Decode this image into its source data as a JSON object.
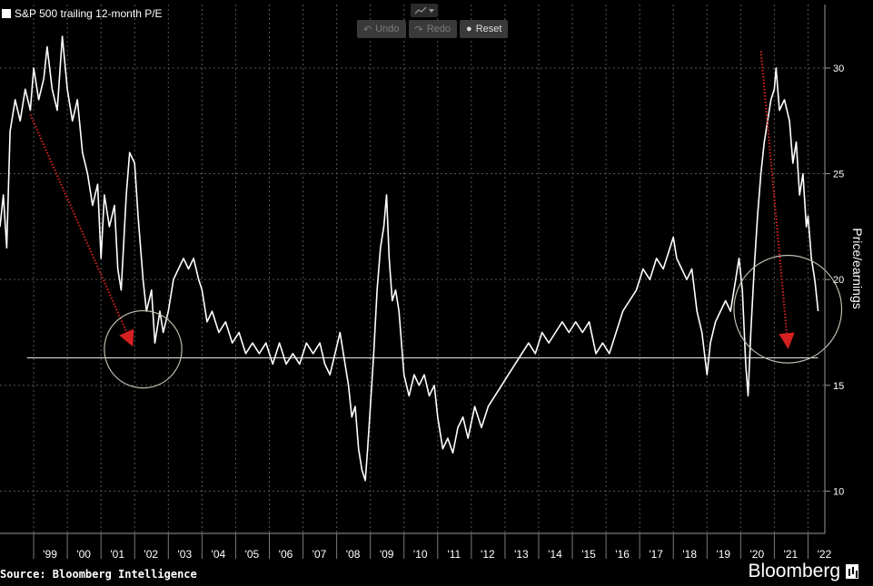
{
  "legend": {
    "label": "S&P 500 trailing 12-month P/E"
  },
  "toolbar": {
    "undo_label": "Undo",
    "redo_label": "Redo",
    "reset_label": "Reset",
    "undo_icon": "undo-icon",
    "redo_icon": "redo-icon",
    "reset_icon": "reset-icon",
    "chart_type_icon": "line-chart-icon"
  },
  "source": "Source: Bloomberg Intelligence",
  "brand": "Bloomberg",
  "colors": {
    "line": "#ffffff",
    "arrow": "#d42020",
    "circle": "#bcbcae",
    "grid": "#555555",
    "background": "#000000"
  },
  "chart_data": {
    "type": "line",
    "ylabel": "Price/earnings",
    "ylim": [
      8,
      33
    ],
    "yticks": [
      10,
      15,
      20,
      25,
      30
    ],
    "xlim": [
      1998.0,
      2022.5
    ],
    "xticks": [
      {
        "x": 1999.0,
        "label": "'99"
      },
      {
        "x": 2000.0,
        "label": "'00"
      },
      {
        "x": 2001.0,
        "label": "'01"
      },
      {
        "x": 2002.0,
        "label": "'02"
      },
      {
        "x": 2003.0,
        "label": "'03"
      },
      {
        "x": 2004.0,
        "label": "'04"
      },
      {
        "x": 2005.0,
        "label": "'05"
      },
      {
        "x": 2006.0,
        "label": "'06"
      },
      {
        "x": 2007.0,
        "label": "'07"
      },
      {
        "x": 2008.0,
        "label": "'08"
      },
      {
        "x": 2009.0,
        "label": "'09"
      },
      {
        "x": 2010.0,
        "label": "'10"
      },
      {
        "x": 2011.0,
        "label": "'11"
      },
      {
        "x": 2012.0,
        "label": "'12"
      },
      {
        "x": 2013.0,
        "label": "'13"
      },
      {
        "x": 2014.0,
        "label": "'14"
      },
      {
        "x": 2015.0,
        "label": "'15"
      },
      {
        "x": 2016.0,
        "label": "'16"
      },
      {
        "x": 2017.0,
        "label": "'17"
      },
      {
        "x": 2018.0,
        "label": "'18"
      },
      {
        "x": 2019.0,
        "label": "'19"
      },
      {
        "x": 2020.0,
        "label": "'20"
      },
      {
        "x": 2021.0,
        "label": "'21"
      },
      {
        "x": 2022.0,
        "label": "'22"
      }
    ],
    "grid": true,
    "series": [
      {
        "points": [
          [
            1998.0,
            22.5
          ],
          [
            1998.1,
            24.0
          ],
          [
            1998.2,
            21.5
          ],
          [
            1998.3,
            27.0
          ],
          [
            1998.45,
            28.5
          ],
          [
            1998.6,
            27.5
          ],
          [
            1998.75,
            29.0
          ],
          [
            1998.9,
            28.0
          ],
          [
            1999.0,
            30.0
          ],
          [
            1999.15,
            28.5
          ],
          [
            1999.3,
            29.5
          ],
          [
            1999.4,
            31.0
          ],
          [
            1999.55,
            29.0
          ],
          [
            1999.7,
            28.0
          ],
          [
            1999.85,
            31.5
          ],
          [
            2000.0,
            29.0
          ],
          [
            2000.15,
            27.5
          ],
          [
            2000.3,
            28.5
          ],
          [
            2000.45,
            26.0
          ],
          [
            2000.6,
            25.0
          ],
          [
            2000.75,
            23.5
          ],
          [
            2000.9,
            24.5
          ],
          [
            2001.0,
            21.0
          ],
          [
            2001.1,
            24.0
          ],
          [
            2001.25,
            22.5
          ],
          [
            2001.4,
            23.5
          ],
          [
            2001.5,
            20.5
          ],
          [
            2001.6,
            19.5
          ],
          [
            2001.75,
            24.0
          ],
          [
            2001.85,
            26.0
          ],
          [
            2002.0,
            25.5
          ],
          [
            2002.1,
            23.0
          ],
          [
            2002.25,
            20.0
          ],
          [
            2002.35,
            18.5
          ],
          [
            2002.5,
            19.5
          ],
          [
            2002.6,
            17.0
          ],
          [
            2002.75,
            18.5
          ],
          [
            2002.85,
            17.5
          ],
          [
            2003.0,
            18.5
          ],
          [
            2003.15,
            20.0
          ],
          [
            2003.3,
            20.5
          ],
          [
            2003.45,
            21.0
          ],
          [
            2003.6,
            20.5
          ],
          [
            2003.75,
            21.0
          ],
          [
            2003.9,
            20.0
          ],
          [
            2004.0,
            19.5
          ],
          [
            2004.15,
            18.0
          ],
          [
            2004.3,
            18.5
          ],
          [
            2004.5,
            17.5
          ],
          [
            2004.7,
            18.0
          ],
          [
            2004.9,
            17.0
          ],
          [
            2005.1,
            17.5
          ],
          [
            2005.3,
            16.5
          ],
          [
            2005.5,
            17.0
          ],
          [
            2005.7,
            16.5
          ],
          [
            2005.9,
            17.0
          ],
          [
            2006.1,
            16.0
          ],
          [
            2006.3,
            17.0
          ],
          [
            2006.5,
            16.0
          ],
          [
            2006.7,
            16.5
          ],
          [
            2006.9,
            16.0
          ],
          [
            2007.1,
            17.0
          ],
          [
            2007.3,
            16.5
          ],
          [
            2007.5,
            17.0
          ],
          [
            2007.65,
            16.0
          ],
          [
            2007.8,
            15.5
          ],
          [
            2007.95,
            16.5
          ],
          [
            2008.1,
            17.5
          ],
          [
            2008.2,
            16.5
          ],
          [
            2008.35,
            15.0
          ],
          [
            2008.45,
            13.5
          ],
          [
            2008.55,
            14.0
          ],
          [
            2008.65,
            12.0
          ],
          [
            2008.75,
            11.0
          ],
          [
            2008.85,
            10.5
          ],
          [
            2008.92,
            12.0
          ],
          [
            2009.0,
            14.0
          ],
          [
            2009.1,
            16.5
          ],
          [
            2009.2,
            19.5
          ],
          [
            2009.3,
            21.5
          ],
          [
            2009.4,
            22.5
          ],
          [
            2009.48,
            24.0
          ],
          [
            2009.56,
            21.0
          ],
          [
            2009.65,
            19.0
          ],
          [
            2009.75,
            19.5
          ],
          [
            2009.85,
            18.5
          ],
          [
            2010.0,
            15.5
          ],
          [
            2010.15,
            14.5
          ],
          [
            2010.3,
            15.5
          ],
          [
            2010.45,
            15.0
          ],
          [
            2010.6,
            15.5
          ],
          [
            2010.75,
            14.5
          ],
          [
            2010.9,
            15.0
          ],
          [
            2011.0,
            13.5
          ],
          [
            2011.15,
            12.0
          ],
          [
            2011.3,
            12.5
          ],
          [
            2011.45,
            11.8
          ],
          [
            2011.6,
            13.0
          ],
          [
            2011.75,
            13.5
          ],
          [
            2011.9,
            12.5
          ],
          [
            2012.1,
            14.0
          ],
          [
            2012.3,
            13.0
          ],
          [
            2012.5,
            14.0
          ],
          [
            2012.7,
            14.5
          ],
          [
            2012.9,
            15.0
          ],
          [
            2013.1,
            15.5
          ],
          [
            2013.3,
            16.0
          ],
          [
            2013.5,
            16.5
          ],
          [
            2013.7,
            17.0
          ],
          [
            2013.9,
            16.5
          ],
          [
            2014.1,
            17.5
          ],
          [
            2014.3,
            17.0
          ],
          [
            2014.5,
            17.5
          ],
          [
            2014.7,
            18.0
          ],
          [
            2014.9,
            17.5
          ],
          [
            2015.1,
            18.0
          ],
          [
            2015.3,
            17.5
          ],
          [
            2015.5,
            18.0
          ],
          [
            2015.7,
            16.5
          ],
          [
            2015.9,
            17.0
          ],
          [
            2016.1,
            16.5
          ],
          [
            2016.3,
            17.5
          ],
          [
            2016.5,
            18.5
          ],
          [
            2016.7,
            19.0
          ],
          [
            2016.9,
            19.5
          ],
          [
            2017.1,
            20.5
          ],
          [
            2017.3,
            20.0
          ],
          [
            2017.5,
            21.0
          ],
          [
            2017.7,
            20.5
          ],
          [
            2017.9,
            21.5
          ],
          [
            2018.0,
            22.0
          ],
          [
            2018.1,
            21.0
          ],
          [
            2018.25,
            20.5
          ],
          [
            2018.4,
            20.0
          ],
          [
            2018.55,
            20.5
          ],
          [
            2018.7,
            18.5
          ],
          [
            2018.85,
            17.5
          ],
          [
            2019.0,
            15.5
          ],
          [
            2019.1,
            17.0
          ],
          [
            2019.25,
            18.0
          ],
          [
            2019.4,
            18.5
          ],
          [
            2019.55,
            19.0
          ],
          [
            2019.7,
            18.5
          ],
          [
            2019.85,
            20.0
          ],
          [
            2019.95,
            21.0
          ],
          [
            2020.05,
            19.5
          ],
          [
            2020.15,
            16.0
          ],
          [
            2020.22,
            14.5
          ],
          [
            2020.3,
            17.5
          ],
          [
            2020.4,
            20.5
          ],
          [
            2020.5,
            23.0
          ],
          [
            2020.6,
            25.0
          ],
          [
            2020.7,
            26.5
          ],
          [
            2020.8,
            27.5
          ],
          [
            2020.9,
            28.5
          ],
          [
            2021.0,
            29.0
          ],
          [
            2021.05,
            30.0
          ],
          [
            2021.15,
            28.0
          ],
          [
            2021.3,
            28.5
          ],
          [
            2021.45,
            27.5
          ],
          [
            2021.55,
            25.5
          ],
          [
            2021.65,
            26.5
          ],
          [
            2021.75,
            24.0
          ],
          [
            2021.85,
            25.0
          ],
          [
            2021.95,
            22.5
          ],
          [
            2022.0,
            23.0
          ],
          [
            2022.1,
            21.0
          ],
          [
            2022.2,
            20.0
          ],
          [
            2022.3,
            18.5
          ]
        ]
      }
    ],
    "reference_line": {
      "y": 16.3,
      "x_range": [
        1998.8,
        2022.3
      ]
    },
    "annotations": {
      "arrows": [
        {
          "from": [
            1998.9,
            27.8
          ],
          "to": [
            2001.9,
            17.0
          ]
        },
        {
          "from": [
            2020.6,
            30.8
          ],
          "to": [
            2021.4,
            16.9
          ]
        }
      ],
      "circles": [
        {
          "cx": 2002.25,
          "cy": 16.7,
          "r_years": 1.15
        },
        {
          "cx": 2021.4,
          "cy": 18.6,
          "r_years": 1.6
        }
      ]
    }
  }
}
